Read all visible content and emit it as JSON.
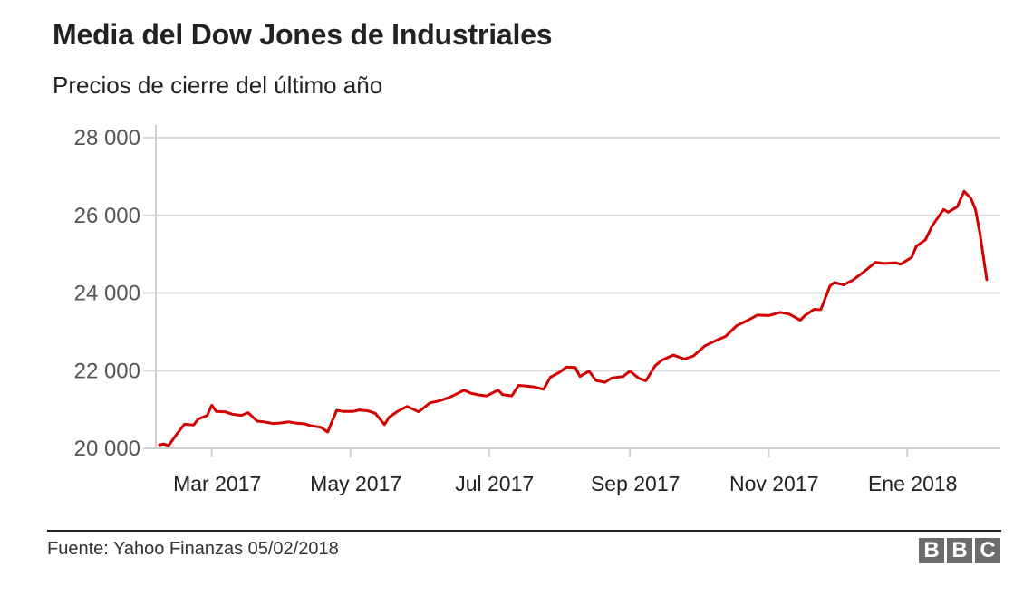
{
  "header": {
    "title": "Media del Dow Jones de Industriales",
    "subtitle": "Precios de cierre del último año"
  },
  "footer": {
    "source": "Fuente: Yahoo Finanzas 05/02/2018",
    "logo_letters": [
      "B",
      "B",
      "C"
    ]
  },
  "colors": {
    "line": "#d20000",
    "grid": "#d9d9d9",
    "axis": "#cfcfcf",
    "logo_bg": "#6b6b6b"
  },
  "chart_data": {
    "type": "line",
    "title": "Media del Dow Jones de Industriales",
    "subtitle": "Precios de cierre del último año",
    "xlabel": "",
    "ylabel": "",
    "ylim": [
      20000,
      28000
    ],
    "yticks": [
      20000,
      22000,
      24000,
      26000,
      28000
    ],
    "ytick_labels": [
      "20 000",
      "22 000",
      "24 000",
      "26 000",
      "28 000"
    ],
    "xlim": [
      "2017-02-06",
      "2018-02-05"
    ],
    "xticks": [
      "2017-03-01",
      "2017-05-01",
      "2017-07-01",
      "2017-09-01",
      "2017-11-01",
      "2018-01-01"
    ],
    "xtick_labels": [
      "Mar 2017",
      "May 2017",
      "Jul 2017",
      "Sep 2017",
      "Nov 2017",
      "Ene 2018"
    ],
    "grid": true,
    "series": [
      {
        "x": [
          "2017-02-06",
          "2017-02-08",
          "2017-02-10",
          "2017-02-14",
          "2017-02-17",
          "2017-02-21",
          "2017-02-23",
          "2017-02-27",
          "2017-03-01",
          "2017-03-03",
          "2017-03-07",
          "2017-03-10",
          "2017-03-14",
          "2017-03-17",
          "2017-03-21",
          "2017-03-24",
          "2017-03-28",
          "2017-03-31",
          "2017-04-04",
          "2017-04-07",
          "2017-04-11",
          "2017-04-13",
          "2017-04-18",
          "2017-04-21",
          "2017-04-25",
          "2017-04-28",
          "2017-05-02",
          "2017-05-05",
          "2017-05-09",
          "2017-05-12",
          "2017-05-16",
          "2017-05-18",
          "2017-05-22",
          "2017-05-26",
          "2017-05-31",
          "2017-06-05",
          "2017-06-09",
          "2017-06-13",
          "2017-06-16",
          "2017-06-20",
          "2017-06-23",
          "2017-06-27",
          "2017-06-30",
          "2017-07-05",
          "2017-07-07",
          "2017-07-11",
          "2017-07-14",
          "2017-07-18",
          "2017-07-21",
          "2017-07-25",
          "2017-07-28",
          "2017-08-01",
          "2017-08-04",
          "2017-08-08",
          "2017-08-10",
          "2017-08-14",
          "2017-08-17",
          "2017-08-21",
          "2017-08-24",
          "2017-08-29",
          "2017-09-01",
          "2017-09-05",
          "2017-09-08",
          "2017-09-12",
          "2017-09-15",
          "2017-09-20",
          "2017-09-25",
          "2017-09-29",
          "2017-10-04",
          "2017-10-09",
          "2017-10-13",
          "2017-10-18",
          "2017-10-23",
          "2017-10-27",
          "2017-11-01",
          "2017-11-06",
          "2017-11-10",
          "2017-11-15",
          "2017-11-17",
          "2017-11-21",
          "2017-11-24",
          "2017-11-28",
          "2017-11-30",
          "2017-12-04",
          "2017-12-08",
          "2017-12-13",
          "2017-12-18",
          "2017-12-22",
          "2017-12-27",
          "2017-12-29",
          "2018-01-03",
          "2018-01-05",
          "2018-01-09",
          "2018-01-12",
          "2018-01-17",
          "2018-01-19",
          "2018-01-23",
          "2018-01-26",
          "2018-01-29",
          "2018-01-31",
          "2018-02-02",
          "2018-02-05"
        ],
        "values": [
          20090,
          20110,
          20070,
          20400,
          20620,
          20600,
          20750,
          20850,
          21110,
          20950,
          20940,
          20880,
          20850,
          20920,
          20700,
          20680,
          20640,
          20650,
          20680,
          20650,
          20630,
          20590,
          20540,
          20420,
          20980,
          20950,
          20950,
          20990,
          20960,
          20900,
          20610,
          20800,
          20960,
          21080,
          20940,
          21170,
          21220,
          21300,
          21380,
          21500,
          21420,
          21370,
          21350,
          21500,
          21380,
          21350,
          21620,
          21600,
          21580,
          21520,
          21830,
          21960,
          22090,
          22080,
          21850,
          21990,
          21750,
          21700,
          21810,
          21850,
          21990,
          21800,
          21740,
          22120,
          22270,
          22400,
          22300,
          22380,
          22640,
          22780,
          22880,
          23160,
          23300,
          23430,
          23420,
          23500,
          23460,
          23300,
          23420,
          23580,
          23570,
          24180,
          24270,
          24210,
          24330,
          24550,
          24790,
          24760,
          24780,
          24740,
          24920,
          25200,
          25370,
          25730,
          26150,
          26080,
          26220,
          26620,
          26440,
          26150,
          25520,
          24340
        ]
      }
    ]
  }
}
